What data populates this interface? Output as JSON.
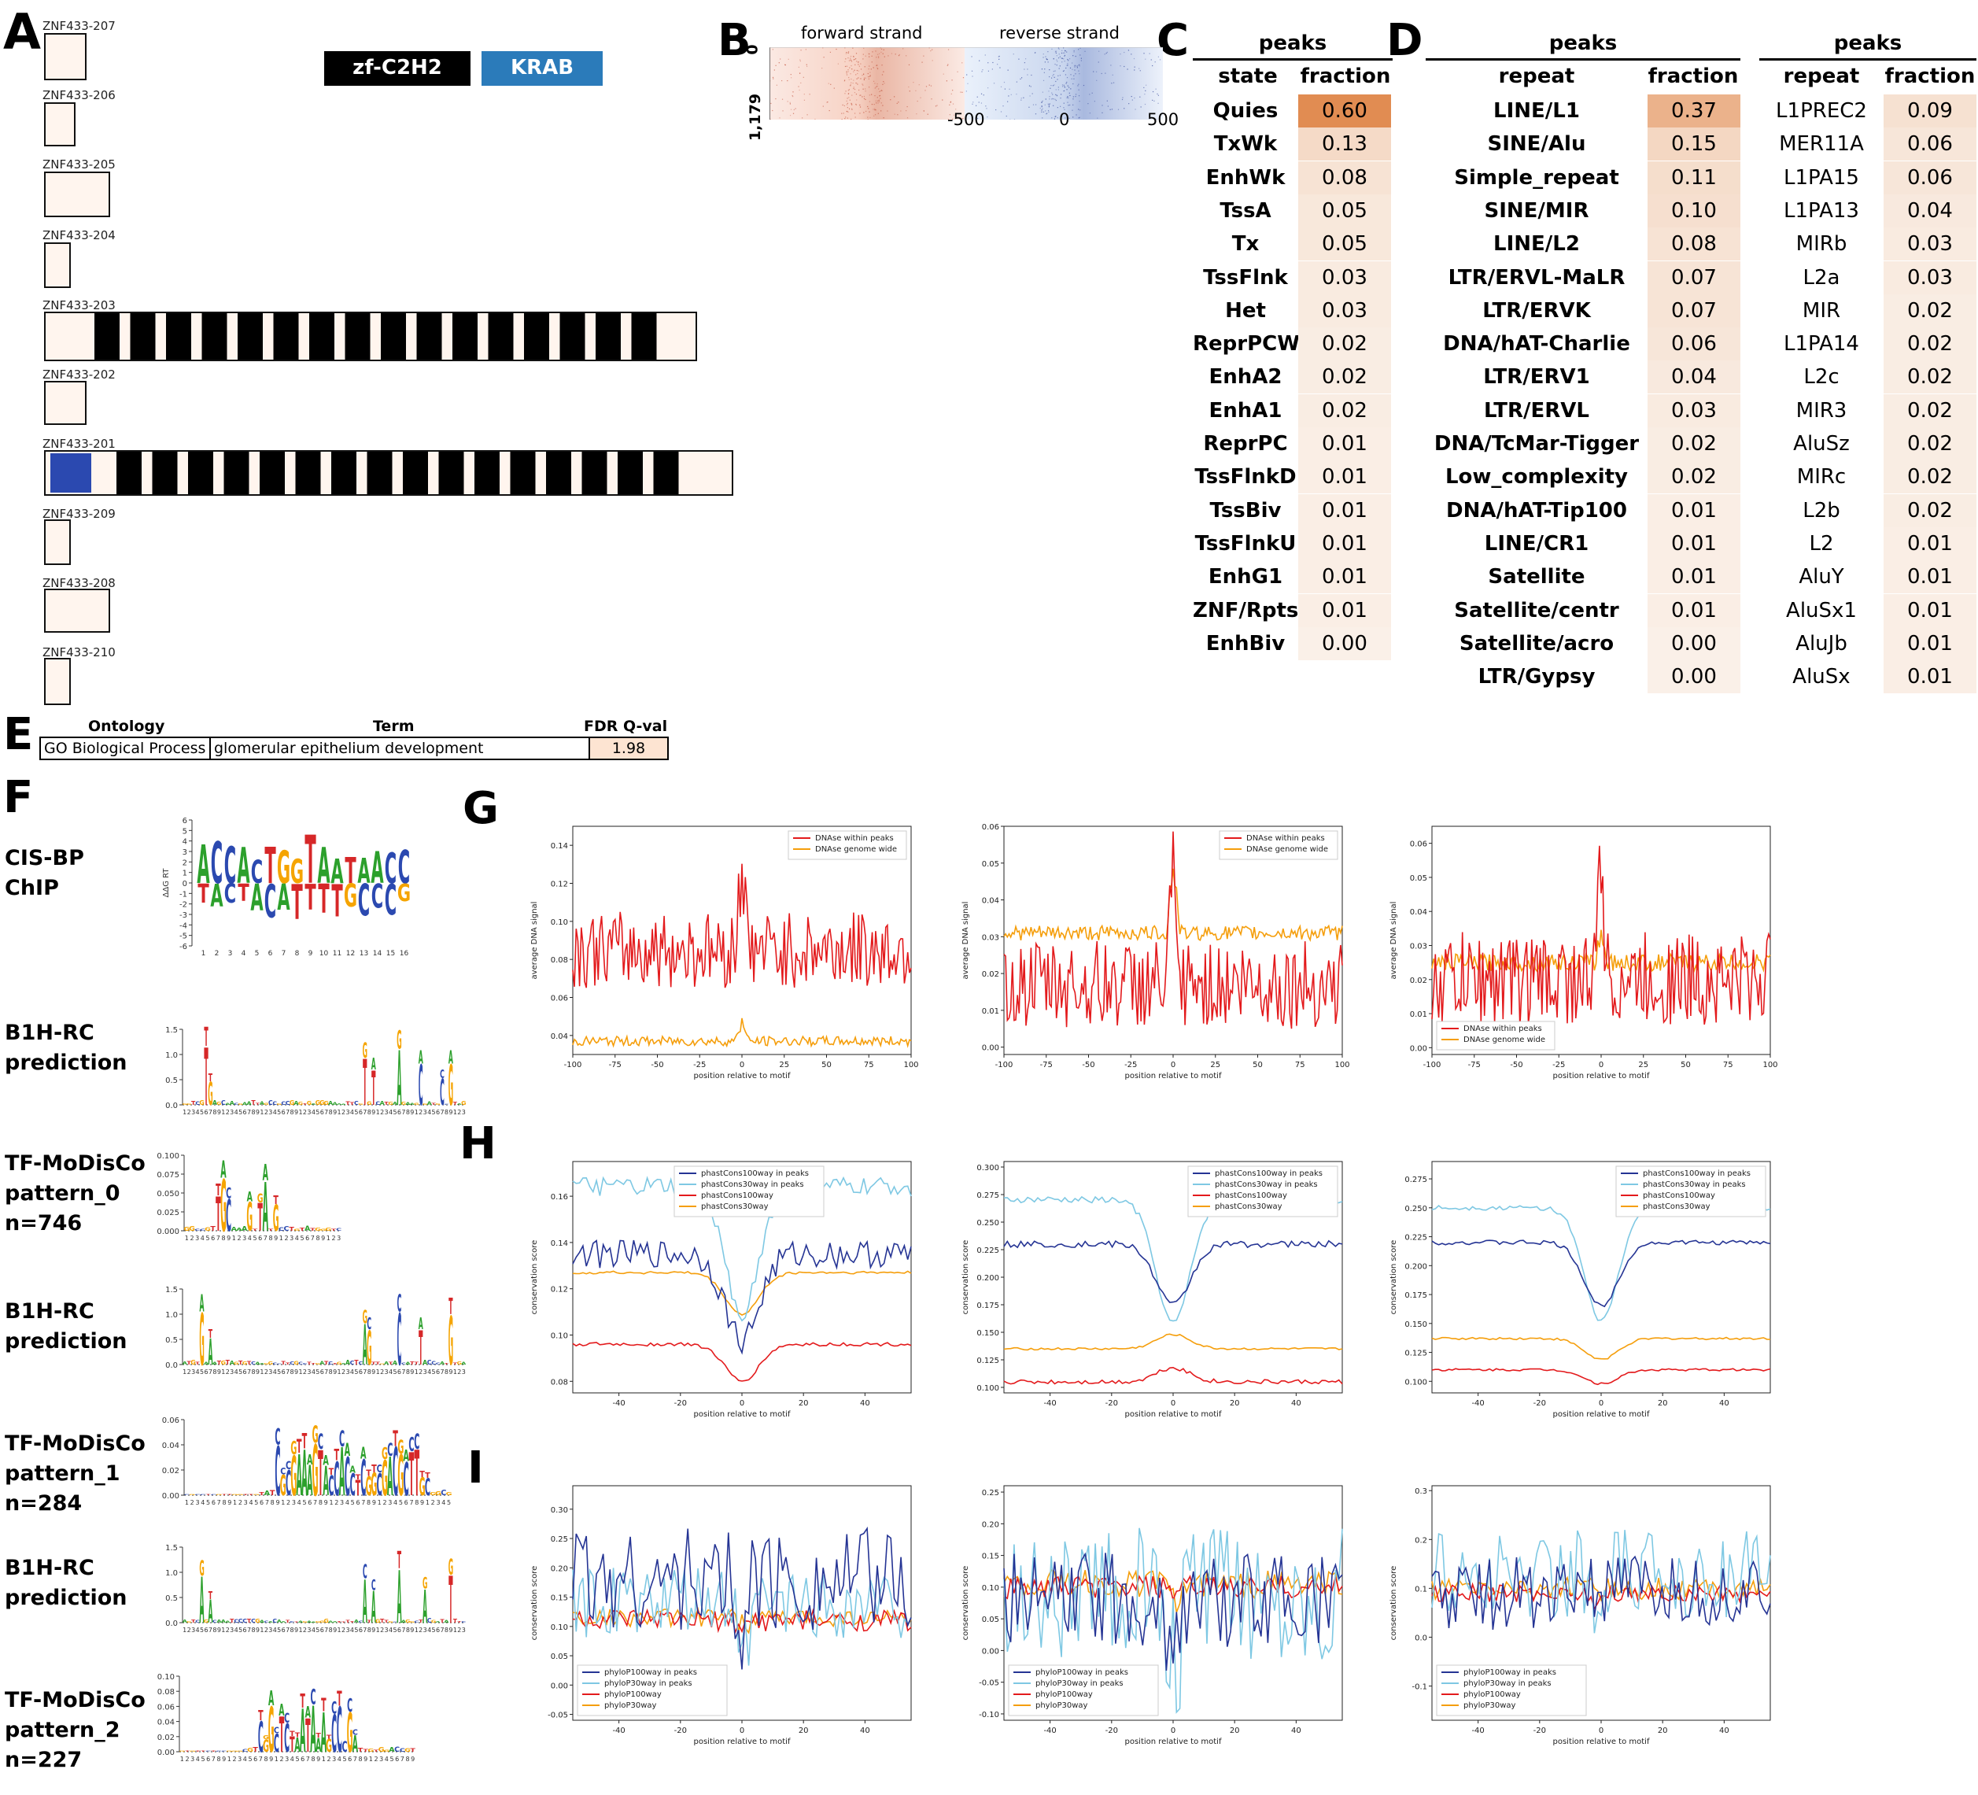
{
  "panel_labels": {
    "A": "A",
    "B": "B",
    "C": "C",
    "D": "D",
    "E": "E",
    "F": "F",
    "G": "G",
    "H": "H",
    "I": "I"
  },
  "panelA": {
    "legend": [
      {
        "label": "zf-C2H2",
        "color": "#000000"
      },
      {
        "label": "KRAB",
        "color": "#2b7bba"
      }
    ],
    "isoforms": [
      "ZNF433-207",
      "ZNF433-206",
      "ZNF433-205",
      "ZNF433-204",
      "ZNF433-203",
      "ZNF433-202",
      "ZNF433-201",
      "ZNF433-209",
      "ZNF433-208",
      "ZNF433-210"
    ]
  },
  "panelB": {
    "left_title": "forward strand",
    "right_title": "reverse strand",
    "ytick_top": "0",
    "ytick_bottom": "1,179",
    "xticks": [
      "-500",
      "0",
      "500"
    ]
  },
  "panelC": {
    "top_header": "peaks",
    "col1": "state",
    "col2": "fraction",
    "rows": [
      [
        "Quies",
        "0.60"
      ],
      [
        "TxWk",
        "0.13"
      ],
      [
        "EnhWk",
        "0.08"
      ],
      [
        "TssA",
        "0.05"
      ],
      [
        "Tx",
        "0.05"
      ],
      [
        "TssFlnk",
        "0.03"
      ],
      [
        "Het",
        "0.03"
      ],
      [
        "ReprPCWk",
        "0.02"
      ],
      [
        "EnhA2",
        "0.02"
      ],
      [
        "EnhA1",
        "0.02"
      ],
      [
        "ReprPC",
        "0.01"
      ],
      [
        "TssFlnkD",
        "0.01"
      ],
      [
        "TssBiv",
        "0.01"
      ],
      [
        "TssFlnkU",
        "0.01"
      ],
      [
        "EnhG1",
        "0.01"
      ],
      [
        "ZNF/Rpts",
        "0.01"
      ],
      [
        "EnhBiv",
        "0.00"
      ]
    ]
  },
  "panelD1": {
    "top_header": "peaks",
    "col1": "repeat",
    "col2": "fraction",
    "rows": [
      [
        "LINE/L1",
        "0.37"
      ],
      [
        "SINE/Alu",
        "0.15"
      ],
      [
        "Simple_repeat",
        "0.11"
      ],
      [
        "SINE/MIR",
        "0.10"
      ],
      [
        "LINE/L2",
        "0.08"
      ],
      [
        "LTR/ERVL-MaLR",
        "0.07"
      ],
      [
        "LTR/ERVK",
        "0.07"
      ],
      [
        "DNA/hAT-Charlie",
        "0.06"
      ],
      [
        "LTR/ERV1",
        "0.04"
      ],
      [
        "LTR/ERVL",
        "0.03"
      ],
      [
        "DNA/TcMar-Tigger",
        "0.02"
      ],
      [
        "Low_complexity",
        "0.02"
      ],
      [
        "DNA/hAT-Tip100",
        "0.01"
      ],
      [
        "LINE/CR1",
        "0.01"
      ],
      [
        "Satellite",
        "0.01"
      ],
      [
        "Satellite/centr",
        "0.01"
      ],
      [
        "Satellite/acro",
        "0.00"
      ],
      [
        "LTR/Gypsy",
        "0.00"
      ]
    ]
  },
  "panelD2": {
    "top_header": "peaks",
    "col1": "repeat",
    "col2": "fraction",
    "rows": [
      [
        "L1PREC2",
        "0.09"
      ],
      [
        "MER11A",
        "0.06"
      ],
      [
        "L1PA15",
        "0.06"
      ],
      [
        "L1PA13",
        "0.04"
      ],
      [
        "MIRb",
        "0.03"
      ],
      [
        "L2a",
        "0.03"
      ],
      [
        "MIR",
        "0.02"
      ],
      [
        "L1PA14",
        "0.02"
      ],
      [
        "L2c",
        "0.02"
      ],
      [
        "MIR3",
        "0.02"
      ],
      [
        "AluSz",
        "0.02"
      ],
      [
        "MIRc",
        "0.02"
      ],
      [
        "L2b",
        "0.02"
      ],
      [
        "L2",
        "0.01"
      ],
      [
        "AluY",
        "0.01"
      ],
      [
        "AluSx1",
        "0.01"
      ],
      [
        "AluJb",
        "0.01"
      ],
      [
        "AluSx",
        "0.01"
      ]
    ]
  },
  "panelE": {
    "headers": [
      "Ontology",
      "Term",
      "FDR Q-val"
    ],
    "row": [
      "GO Biological Process",
      "glomerular epithelium development",
      "1.98"
    ]
  },
  "panelF": {
    "labels": [
      "CIS-BP\nChIP",
      "B1H-RC\nprediction",
      "TF-MoDisCo\npattern_0\nn=746",
      "B1H-RC\nprediction",
      "TF-MoDisCo\npattern_1\nn=284",
      "B1H-RC\nprediction",
      "TF-MoDisCo\npattern_2\nn=227"
    ],
    "cisbp_ylabel": "ΔΔG RT",
    "cisbp_yticks": [
      "6",
      "5",
      "4",
      "3",
      "2",
      "1",
      "0",
      "-1",
      "-2",
      "-3",
      "-4",
      "-5",
      "-6"
    ],
    "cisbp_consensus": "ACCACTGGTAATAACC",
    "b1h_yticks": [
      "1.5",
      "1.0",
      "0.5",
      "0.0"
    ],
    "modisco0_yticks": [
      "0.100",
      "0.075",
      "0.050",
      "0.025",
      "0.000"
    ],
    "modisco1_yticks": [
      "0.06",
      "0.04",
      "0.02",
      "0.00"
    ],
    "modisco2_yticks": [
      "0.10",
      "0.08",
      "0.06",
      "0.04",
      "0.02",
      "0.00"
    ]
  },
  "chart_data": [
    {
      "type": "line",
      "panel": "G1",
      "ylabel": "average DNA signal",
      "xlabel": "position relative to motif",
      "xlim": [
        -100,
        100
      ],
      "ylim": [
        0.03,
        0.15
      ],
      "yticks": [
        "0.04",
        "0.06",
        "0.08",
        "0.10",
        "0.12",
        "0.14"
      ],
      "xticks": [
        "-100",
        "-75",
        "-50",
        "-25",
        "0",
        "25",
        "50",
        "75",
        "100"
      ],
      "series": [
        {
          "name": "DNAse within peaks",
          "color": "#e31a1c",
          "mean": 0.085,
          "noise": 0.02,
          "peak": 0.145
        },
        {
          "name": "DNAse genome wide",
          "color": "#f59e0b",
          "mean": 0.037,
          "noise": 0.0025,
          "peak": 0.05
        }
      ]
    },
    {
      "type": "line",
      "panel": "G2",
      "ylabel": "average DNA signal",
      "xlabel": "position relative to motif",
      "xlim": [
        -100,
        100
      ],
      "ylim": [
        -0.002,
        0.06
      ],
      "yticks": [
        "0.00",
        "0.01",
        "0.02",
        "0.03",
        "0.04",
        "0.05",
        "0.06"
      ],
      "xticks": [
        "-100",
        "-75",
        "-50",
        "-25",
        "0",
        "25",
        "50",
        "75",
        "100"
      ],
      "series": [
        {
          "name": "DNAse within peaks",
          "color": "#e31a1c",
          "mean": 0.017,
          "noise": 0.012,
          "peak": 0.057
        },
        {
          "name": "DNAse genome wide",
          "color": "#f59e0b",
          "mean": 0.031,
          "noise": 0.002,
          "peak": 0.056
        }
      ]
    },
    {
      "type": "line",
      "panel": "G3",
      "ylabel": "average DNA signal",
      "xlabel": "position relative to motif",
      "xlim": [
        -100,
        100
      ],
      "ylim": [
        -0.002,
        0.065
      ],
      "yticks": [
        "0.00",
        "0.01",
        "0.02",
        "0.03",
        "0.04",
        "0.05",
        "0.06"
      ],
      "xticks": [
        "-100",
        "-75",
        "-50",
        "-25",
        "0",
        "25",
        "50",
        "75",
        "100"
      ],
      "series": [
        {
          "name": "DNAse within peaks",
          "color": "#e31a1c",
          "mean": 0.02,
          "noise": 0.014,
          "peak": 0.063
        },
        {
          "name": "DNAse genome wide",
          "color": "#f59e0b",
          "mean": 0.025,
          "noise": 0.0025,
          "peak": 0.035
        }
      ]
    },
    {
      "type": "line",
      "panel": "H1",
      "ylabel": "conservation score",
      "xlabel": "position relative to motif",
      "xlim": [
        -55,
        55
      ],
      "ylim": [
        0.075,
        0.175
      ],
      "yticks": [
        "0.08",
        "0.10",
        "0.12",
        "0.14",
        "0.16"
      ],
      "xticks": [
        "-40",
        "-20",
        "0",
        "20",
        "40"
      ],
      "series": [
        {
          "name": "phastCons100way in peaks",
          "color": "#253494",
          "base": 0.135,
          "dip": 0.098,
          "noise": 0.006
        },
        {
          "name": "phastCons30way in peaks",
          "color": "#7ec8e3",
          "base": 0.164,
          "dip": 0.11,
          "noise": 0.004
        },
        {
          "name": "phastCons100way",
          "color": "#e31a1c",
          "base": 0.096,
          "dip": 0.08,
          "noise": 0.0008
        },
        {
          "name": "phastCons30way",
          "color": "#f59e0b",
          "base": 0.127,
          "dip": 0.109,
          "noise": 0.0006
        }
      ]
    },
    {
      "type": "line",
      "panel": "H2",
      "ylabel": "conservation score",
      "xlabel": "position relative to motif",
      "xlim": [
        -55,
        55
      ],
      "ylim": [
        0.095,
        0.305
      ],
      "yticks": [
        "0.100",
        "0.125",
        "0.150",
        "0.175",
        "0.200",
        "0.225",
        "0.250",
        "0.275",
        "0.300"
      ],
      "xticks": [
        "-40",
        "-20",
        "0",
        "20",
        "40"
      ],
      "series": [
        {
          "name": "phastCons100way in peaks",
          "color": "#253494",
          "base": 0.23,
          "dip": 0.175,
          "noise": 0.003
        },
        {
          "name": "phastCons30way in peaks",
          "color": "#7ec8e3",
          "base": 0.27,
          "dip": 0.158,
          "noise": 0.003
        },
        {
          "name": "phastCons100way",
          "color": "#e31a1c",
          "base": 0.105,
          "dip": 0.118,
          "noise": 0.002
        },
        {
          "name": "phastCons30way",
          "color": "#f59e0b",
          "base": 0.135,
          "dip": 0.148,
          "noise": 0.001
        }
      ]
    },
    {
      "type": "line",
      "panel": "H3",
      "ylabel": "conservation score",
      "xlabel": "position relative to motif",
      "xlim": [
        -55,
        55
      ],
      "ylim": [
        0.09,
        0.29
      ],
      "yticks": [
        "0.100",
        "0.125",
        "0.150",
        "0.175",
        "0.200",
        "0.225",
        "0.250",
        "0.275"
      ],
      "xticks": [
        "-40",
        "-20",
        "0",
        "20",
        "40"
      ],
      "series": [
        {
          "name": "phastCons100way in peaks",
          "color": "#253494",
          "base": 0.22,
          "dip": 0.165,
          "noise": 0.002
        },
        {
          "name": "phastCons30way in peaks",
          "color": "#7ec8e3",
          "base": 0.25,
          "dip": 0.152,
          "noise": 0.002
        },
        {
          "name": "phastCons100way",
          "color": "#e31a1c",
          "base": 0.11,
          "dip": 0.098,
          "noise": 0.001
        },
        {
          "name": "phastCons30way",
          "color": "#f59e0b",
          "base": 0.137,
          "dip": 0.119,
          "noise": 0.001
        }
      ]
    },
    {
      "type": "line",
      "panel": "I1",
      "ylabel": "conservation score",
      "xlabel": "position relative to motif",
      "xlim": [
        -55,
        55
      ],
      "ylim": [
        -0.06,
        0.34
      ],
      "yticks": [
        "-0.05",
        "0.00",
        "0.05",
        "0.10",
        "0.15",
        "0.20",
        "0.25",
        "0.30"
      ],
      "xticks": [
        "-40",
        "-20",
        "0",
        "20",
        "40"
      ],
      "series": [
        {
          "name": "phyloP100way in peaks",
          "color": "#253494",
          "mean": 0.18,
          "noise": 0.06
        },
        {
          "name": "phyloP30way in peaks",
          "color": "#7ec8e3",
          "mean": 0.14,
          "noise": 0.04
        },
        {
          "name": "phyloP100way",
          "color": "#e31a1c",
          "mean": 0.11,
          "noise": 0.012
        },
        {
          "name": "phyloP30way",
          "color": "#f59e0b",
          "mean": 0.115,
          "noise": 0.01
        }
      ]
    },
    {
      "type": "line",
      "panel": "I2",
      "ylabel": "conservation score",
      "xlabel": "position relative to motif",
      "xlim": [
        -55,
        55
      ],
      "ylim": [
        -0.11,
        0.26
      ],
      "yticks": [
        "-0.10",
        "-0.05",
        "0.00",
        "0.05",
        "0.10",
        "0.15",
        "0.20",
        "0.25"
      ],
      "xticks": [
        "-40",
        "-20",
        "0",
        "20",
        "40"
      ],
      "series": [
        {
          "name": "phyloP100way in peaks",
          "color": "#253494",
          "mean": 0.08,
          "noise": 0.05
        },
        {
          "name": "phyloP30way in peaks",
          "color": "#7ec8e3",
          "mean": 0.09,
          "noise": 0.07
        },
        {
          "name": "phyloP100way",
          "color": "#e31a1c",
          "mean": 0.1,
          "noise": 0.012
        },
        {
          "name": "phyloP30way",
          "color": "#f59e0b",
          "mean": 0.105,
          "noise": 0.015
        }
      ]
    },
    {
      "type": "line",
      "panel": "I3",
      "ylabel": "conservation score",
      "xlabel": "position relative to motif",
      "xlim": [
        -55,
        55
      ],
      "ylim": [
        -0.17,
        0.31
      ],
      "yticks": [
        "-0.1",
        "0.0",
        "0.1",
        "0.2",
        "0.3"
      ],
      "xticks": [
        "-40",
        "-20",
        "0",
        "20",
        "40"
      ],
      "series": [
        {
          "name": "phyloP100way in peaks",
          "color": "#253494",
          "mean": 0.09,
          "noise": 0.05
        },
        {
          "name": "phyloP30way in peaks",
          "color": "#7ec8e3",
          "mean": 0.13,
          "noise": 0.06
        },
        {
          "name": "phyloP100way",
          "color": "#e31a1c",
          "mean": 0.09,
          "noise": 0.012
        },
        {
          "name": "phyloP30way",
          "color": "#f59e0b",
          "mean": 0.1,
          "noise": 0.015
        }
      ]
    }
  ]
}
